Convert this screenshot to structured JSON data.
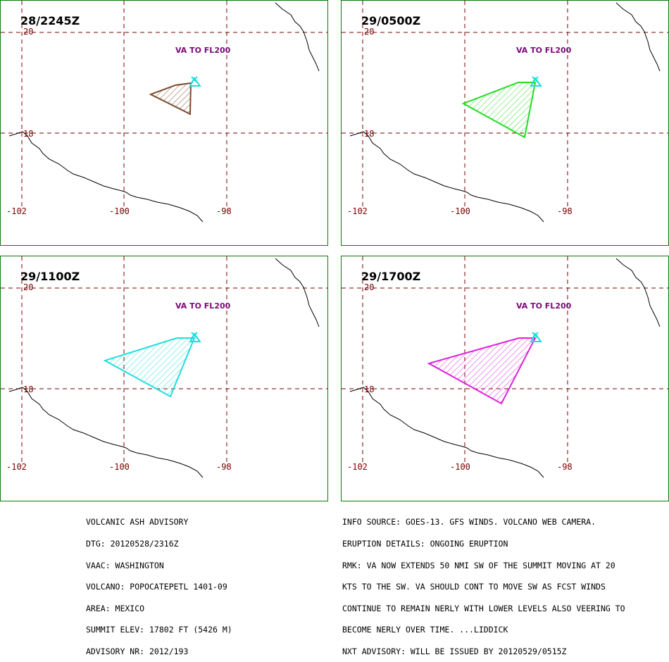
{
  "panels": [
    {
      "time": "28/2245Z",
      "va_label": "VA TO FL200",
      "color": "#7a4a2a"
    },
    {
      "time": "29/0500Z",
      "va_label": "VA TO FL200",
      "color": "#22dd22"
    },
    {
      "time": "29/1100Z",
      "va_label": "VA TO FL200",
      "color": "#22dddd"
    },
    {
      "time": "29/1700Z",
      "va_label": "VA TO FL200",
      "color": "#dd22dd"
    }
  ],
  "grid": {
    "lat_labels": [
      "20",
      "18"
    ],
    "lon_labels": [
      "-102",
      "-100",
      "-98"
    ],
    "line_color": "#7a0000"
  },
  "volcano_marker_color": "#22dddd",
  "advisory_left": [
    "VOLCANIC ASH ADVISORY",
    "DTG: 20120528/2316Z",
    "VAAC: WASHINGTON",
    "VOLCANO: POPOCATEPETL 1401-09",
    "AREA: MEXICO",
    "SUMMIT ELEV: 17802 FT (5426 M)",
    "ADVISORY NR: 2012/193"
  ],
  "advisory_right": [
    "INFO SOURCE: GOES-13. GFS WINDS. VOLCANO WEB CAMERA.",
    "ERUPTION DETAILS: ONGOING ERUPTION",
    "RMK: VA NOW EXTENDS 50 NMI SW OF THE SUMMIT MOVING AT 20",
    "KTS TO THE SW. VA SHOULD CONT TO MOVE SW AS FCST WINDS",
    "CONTINUE TO REMAIN NERLY WITH LOWER LEVELS ALSO VEERING TO",
    "BECOME NERLY OVER TIME. ...LIDDICK",
    "NXT ADVISORY: WILL BE ISSUED BY 20120529/0515Z"
  ]
}
